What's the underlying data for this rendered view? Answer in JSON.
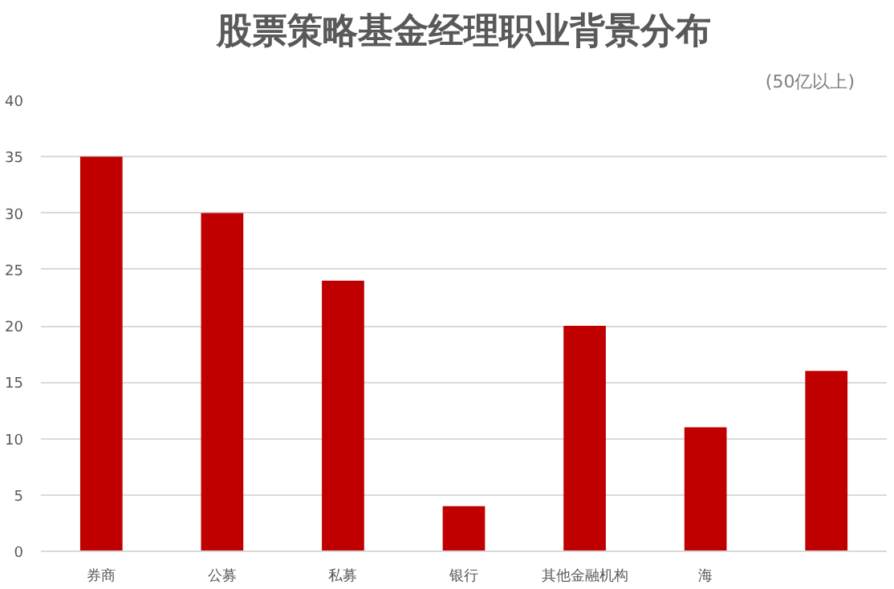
{
  "chart_data": {
    "type": "bar",
    "title": "股票策略基金经理职业背景分布",
    "subtitle": "(50亿以上)",
    "categories": [
      "券商",
      "公募",
      "私募",
      "银行",
      "其他金融机构",
      "海",
      null
    ],
    "values": [
      35,
      30,
      24,
      4,
      20,
      11,
      16
    ],
    "color": "#c00000",
    "ylim": [
      0,
      40
    ],
    "yticks": [
      0,
      5,
      10,
      15,
      20,
      25,
      30,
      35,
      40
    ],
    "grid": "y"
  }
}
